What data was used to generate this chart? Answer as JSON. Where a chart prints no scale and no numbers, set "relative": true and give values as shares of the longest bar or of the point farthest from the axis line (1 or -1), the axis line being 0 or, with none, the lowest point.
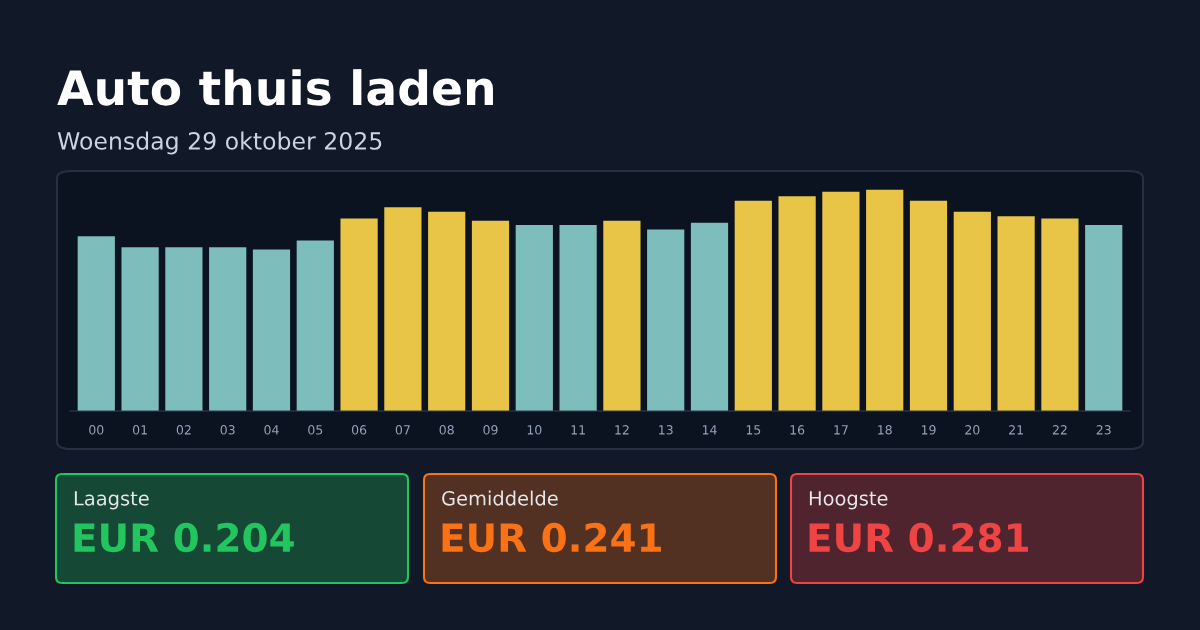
{
  "chart_data": [
    {
      "type": "bar",
      "title": "Auto thuis laden",
      "subtitle": "Woensdag 29 oktober 2025",
      "relative": true,
      "categories": [
        "00",
        "01",
        "02",
        "03",
        "04",
        "05",
        "06",
        "07",
        "08",
        "09",
        "10",
        "11",
        "12",
        "13",
        "14",
        "15",
        "16",
        "17",
        "18",
        "19",
        "20",
        "21",
        "22",
        "23"
      ],
      "values": [
        0.79,
        0.74,
        0.74,
        0.74,
        0.73,
        0.77,
        0.87,
        0.92,
        0.9,
        0.86,
        0.84,
        0.84,
        0.86,
        0.82,
        0.85,
        0.95,
        0.97,
        0.99,
        1,
        0.95,
        0.9,
        0.88,
        0.87,
        0.84
      ],
      "colors": [
        "#7dbdbb",
        "#7dbdbb",
        "#7dbdbb",
        "#7dbdbb",
        "#7dbdbb",
        "#7dbdbb",
        "#e8c547",
        "#e8c547",
        "#e8c547",
        "#e8c547",
        "#7dbdbb",
        "#7dbdbb",
        "#e8c547",
        "#7dbdbb",
        "#7dbdbb",
        "#e8c547",
        "#e8c547",
        "#e8c547",
        "#e8c547",
        "#e8c547",
        "#e8c547",
        "#e8c547",
        "#e8c547",
        "#7dbdbb"
      ],
      "legend": false
    },
    {
      "type": "other",
      "categories": [
        "Laagste",
        "Gemiddelde",
        "Hoogste"
      ],
      "value_labels": [
        "EUR 0.204",
        "EUR 0.241",
        "EUR 0.281"
      ],
      "colors": [
        "#22c55e",
        "#f97316",
        "#ef4444"
      ]
    }
  ]
}
